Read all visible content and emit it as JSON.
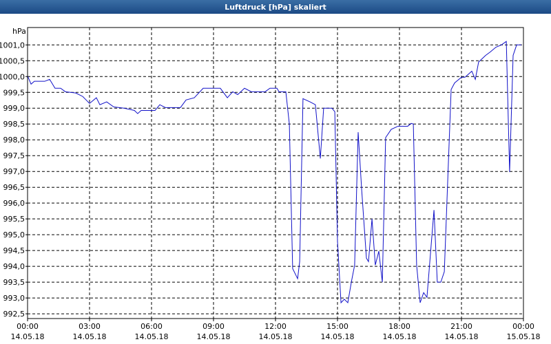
{
  "chart_data": {
    "type": "line",
    "title": "Luftdruck [hPa] skaliert",
    "ylabel": "hPa",
    "color": "#1010c8",
    "grid": true,
    "xlim": [
      0,
      24
    ],
    "ylim": [
      992.35,
      1001.55
    ],
    "xticks": [
      {
        "value": 0,
        "label": "00:00",
        "date": "14.05.18"
      },
      {
        "value": 3,
        "label": "03:00",
        "date": "14.05.18"
      },
      {
        "value": 6,
        "label": "06:00",
        "date": "14.05.18"
      },
      {
        "value": 9,
        "label": "09:00",
        "date": "14.05.18"
      },
      {
        "value": 12,
        "label": "12:00",
        "date": "14.05.18"
      },
      {
        "value": 15,
        "label": "15:00",
        "date": "14.05.18"
      },
      {
        "value": 18,
        "label": "18:00",
        "date": "14.05.18"
      },
      {
        "value": 21,
        "label": "21:00",
        "date": "14.05.18"
      },
      {
        "value": 24,
        "label": "00:00",
        "date": "15.05.18"
      }
    ],
    "yticks": [
      {
        "value": 992.5,
        "label": "992,5"
      },
      {
        "value": 993,
        "label": "993,0"
      },
      {
        "value": 993.5,
        "label": "993,5"
      },
      {
        "value": 994,
        "label": "994,0"
      },
      {
        "value": 994.5,
        "label": "994,5"
      },
      {
        "value": 995,
        "label": "995,0"
      },
      {
        "value": 995.5,
        "label": "995,5"
      },
      {
        "value": 996,
        "label": "996,0"
      },
      {
        "value": 996.5,
        "label": "996,5"
      },
      {
        "value": 997,
        "label": "997,0"
      },
      {
        "value": 997.5,
        "label": "997,5"
      },
      {
        "value": 998,
        "label": "998,0"
      },
      {
        "value": 998.5,
        "label": "998,5"
      },
      {
        "value": 999,
        "label": "999,0"
      },
      {
        "value": 999.5,
        "label": "999,5"
      },
      {
        "value": 1000,
        "label": "1000,0"
      },
      {
        "value": 1000.5,
        "label": "1000,5"
      },
      {
        "value": 1001,
        "label": "1001,0"
      }
    ],
    "x": [
      0,
      0.17,
      0.33,
      0.83,
      1.07,
      1.33,
      1.6,
      1.83,
      2.33,
      2.67,
      3.0,
      3.33,
      3.5,
      3.83,
      4.17,
      4.67,
      5.17,
      5.33,
      5.5,
      6.17,
      6.4,
      6.67,
      7.4,
      7.67,
      8.07,
      8.5,
      9.33,
      9.67,
      9.93,
      10.17,
      10.5,
      10.83,
      11.5,
      11.73,
      12.07,
      12.17,
      12.5,
      12.67,
      12.83,
      13.07,
      13.17,
      13.33,
      13.67,
      13.93,
      14.17,
      14.33,
      14.73,
      14.87,
      15.0,
      15.17,
      15.33,
      15.5,
      15.67,
      15.83,
      16.0,
      16.17,
      16.4,
      16.5,
      16.67,
      16.83,
      17.0,
      17.17,
      17.33,
      17.6,
      17.93,
      18.4,
      18.57,
      18.67,
      18.83,
      19.0,
      19.17,
      19.33,
      19.67,
      19.83,
      20.0,
      20.17,
      20.5,
      20.67,
      21.0,
      21.17,
      21.5,
      21.67,
      21.83,
      22.17,
      22.4,
      22.67,
      22.93,
      23.17,
      23.33,
      23.5,
      23.67,
      23.9
    ],
    "values": [
      1000.02,
      999.76,
      999.85,
      999.85,
      999.91,
      999.63,
      999.63,
      999.52,
      999.48,
      999.37,
      999.15,
      999.33,
      999.11,
      999.2,
      999.04,
      999.0,
      998.93,
      998.83,
      998.93,
      998.93,
      999.11,
      999.02,
      999.02,
      999.26,
      999.33,
      999.63,
      999.63,
      999.33,
      999.52,
      999.43,
      999.63,
      999.52,
      999.52,
      999.63,
      999.63,
      999.52,
      999.52,
      998.5,
      993.93,
      993.61,
      994.15,
      999.3,
      999.2,
      999.11,
      997.41,
      999.0,
      999.0,
      998.89,
      994.8,
      992.85,
      992.96,
      992.85,
      993.5,
      994.04,
      998.24,
      996.43,
      994.26,
      994.15,
      995.5,
      994.04,
      994.48,
      993.5,
      998.07,
      998.33,
      998.43,
      998.43,
      998.52,
      998.5,
      994.04,
      992.85,
      993.17,
      993.02,
      995.78,
      993.5,
      993.5,
      993.83,
      999.59,
      999.8,
      999.98,
      999.98,
      1000.17,
      999.91,
      1000.46,
      1000.67,
      1000.78,
      1000.93,
      1001.0,
      1001.11,
      996.98,
      1000.67,
      1001.0,
      1001.0
    ]
  }
}
